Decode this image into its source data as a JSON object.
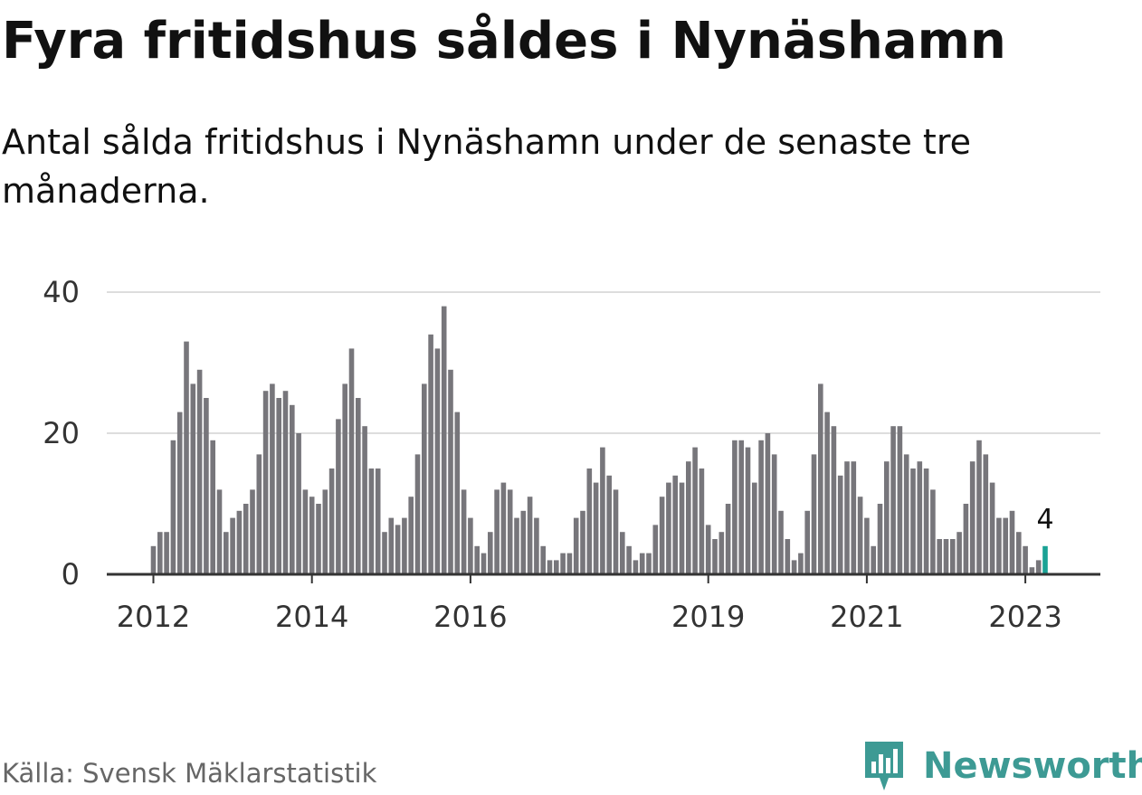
{
  "header": {
    "title": "Fyra fritidshus såldes i Nynäshamn",
    "subtitle": "Antal sålda fritidshus i Nynäshamn under de senaste tre månaderna."
  },
  "footer": {
    "source": "Källa: Svensk Mäklarstatistik",
    "brand": "Newsworthy"
  },
  "colors": {
    "bar": "#77767b",
    "highlight": "#1aa295",
    "grid": "#dddddd",
    "axis": "#333333",
    "brand": "#3d9a94"
  },
  "chart_data": {
    "type": "bar",
    "x_start": "2012-01",
    "y_ticks": [
      0,
      20,
      40
    ],
    "x_ticks": [
      "2012",
      "2014",
      "2016",
      "2019",
      "2021",
      "2023"
    ],
    "ylim": [
      0,
      40
    ],
    "grid": true,
    "highlight_label": "4",
    "values": [
      4,
      6,
      6,
      19,
      23,
      33,
      27,
      29,
      25,
      19,
      12,
      6,
      8,
      9,
      10,
      12,
      17,
      26,
      27,
      25,
      26,
      24,
      20,
      12,
      11,
      10,
      12,
      15,
      22,
      27,
      32,
      25,
      21,
      15,
      15,
      6,
      8,
      7,
      8,
      11,
      17,
      27,
      34,
      32,
      38,
      29,
      23,
      12,
      8,
      4,
      3,
      6,
      12,
      13,
      12,
      8,
      9,
      11,
      8,
      4,
      2,
      2,
      3,
      3,
      8,
      9,
      15,
      13,
      18,
      14,
      12,
      6,
      4,
      2,
      3,
      3,
      7,
      11,
      13,
      14,
      13,
      16,
      18,
      15,
      7,
      5,
      6,
      10,
      19,
      19,
      18,
      13,
      19,
      20,
      17,
      9,
      5,
      2,
      3,
      9,
      17,
      27,
      23,
      21,
      14,
      16,
      16,
      11,
      8,
      4,
      10,
      16,
      21,
      21,
      17,
      15,
      16,
      15,
      12,
      5,
      5,
      5,
      6,
      10,
      16,
      19,
      17,
      13,
      8,
      8,
      9,
      6,
      4,
      1,
      2,
      4
    ]
  }
}
